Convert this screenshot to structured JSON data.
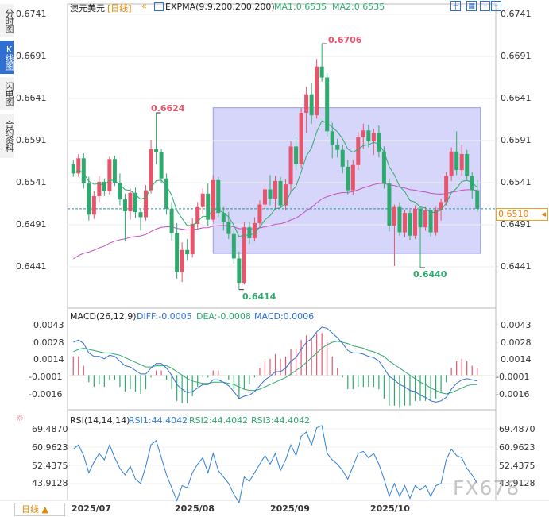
{
  "tabs": [
    {
      "label": "分时图",
      "active": false
    },
    {
      "label": "K线图",
      "active": true
    },
    {
      "label": "闪电图",
      "active": false
    },
    {
      "label": "合约资料",
      "active": false
    }
  ],
  "header": {
    "symbol": "澳元美元",
    "period_tag": "[日线]",
    "indicator": "EXPMA(9,9,200,200,200)",
    "ma1": "MA1:0.6535",
    "ma2": "MA2:0.6535"
  },
  "macd_header": {
    "name": "MACD(26,12,9)",
    "diff": "DIFF:-0.0005",
    "dea": "DEA:-0.0008",
    "macd": "MACD:0.0006"
  },
  "rsi_header": {
    "name": "RSI(14,14,14)",
    "rsi1": "RSI1:44.4042",
    "rsi2": "RSI2:44.4042",
    "rsi3": "RSI3:44.4042"
  },
  "period_selector": "日线 ▲",
  "watermark": "FX678",
  "current_price": "0.6510",
  "colors": {
    "up": "#e8546b",
    "down": "#2eaa6e",
    "ma1": "#2eaa6e",
    "ma2": "#c050c0",
    "diff": "#2f6fd1",
    "dea": "#2eaa6e",
    "rsi": "#2f7fd8",
    "highlight": "#c8c8f8"
  },
  "chart_data": [
    {
      "type": "candlestick",
      "title": "澳元美元 日线",
      "x_ticks": [
        "2025/07",
        "2025/08",
        "2025/09",
        "2025/10"
      ],
      "y_ticks": [
        "0.6741",
        "0.6691",
        "0.6641",
        "0.6591",
        "0.6541",
        "0.6491",
        "0.6441"
      ],
      "ylim": [
        0.6418,
        0.6757
      ],
      "annotations": [
        "0.6706",
        "0.6624",
        "0.6414",
        "0.6440"
      ],
      "ohlc": [
        [
          0.6563,
          0.6568,
          0.6548,
          0.6552
        ],
        [
          0.6552,
          0.6575,
          0.6548,
          0.657
        ],
        [
          0.657,
          0.6576,
          0.6534,
          0.654
        ],
        [
          0.654,
          0.6548,
          0.6496,
          0.6503
        ],
        [
          0.6503,
          0.6531,
          0.6498,
          0.6525
        ],
        [
          0.6525,
          0.6549,
          0.6518,
          0.6542
        ],
        [
          0.6542,
          0.6546,
          0.6525,
          0.6531
        ],
        [
          0.6531,
          0.6572,
          0.6527,
          0.6569
        ],
        [
          0.6569,
          0.6573,
          0.6537,
          0.6541
        ],
        [
          0.6541,
          0.6552,
          0.6514,
          0.6521
        ],
        [
          0.6521,
          0.6528,
          0.6471,
          0.6507
        ],
        [
          0.6507,
          0.6534,
          0.6497,
          0.6529
        ],
        [
          0.6529,
          0.6535,
          0.6499,
          0.6506
        ],
        [
          0.6506,
          0.651,
          0.6484,
          0.65
        ],
        [
          0.65,
          0.6538,
          0.6496,
          0.6532
        ],
        [
          0.6532,
          0.6592,
          0.6528,
          0.6581
        ],
        [
          0.6581,
          0.6624,
          0.6563,
          0.6577
        ],
        [
          0.6577,
          0.6581,
          0.654,
          0.6546
        ],
        [
          0.6546,
          0.6552,
          0.6503,
          0.651
        ],
        [
          0.651,
          0.6518,
          0.6472,
          0.6481
        ],
        [
          0.6481,
          0.6493,
          0.6427,
          0.6435
        ],
        [
          0.6435,
          0.647,
          0.6423,
          0.6461
        ],
        [
          0.6461,
          0.6474,
          0.6448,
          0.6456
        ],
        [
          0.6456,
          0.6499,
          0.6452,
          0.6492
        ],
        [
          0.6492,
          0.6518,
          0.6486,
          0.6512
        ],
        [
          0.6512,
          0.6534,
          0.6504,
          0.6528
        ],
        [
          0.6528,
          0.654,
          0.649,
          0.6497
        ],
        [
          0.6497,
          0.655,
          0.6494,
          0.6544
        ],
        [
          0.6544,
          0.6548,
          0.65,
          0.6505
        ],
        [
          0.6505,
          0.6512,
          0.6484,
          0.6494
        ],
        [
          0.6494,
          0.6506,
          0.6474,
          0.648
        ],
        [
          0.648,
          0.6484,
          0.6445,
          0.6451
        ],
        [
          0.6451,
          0.6459,
          0.6414,
          0.6422
        ],
        [
          0.6422,
          0.6494,
          0.642,
          0.6488
        ],
        [
          0.6488,
          0.6494,
          0.6468,
          0.6475
        ],
        [
          0.6475,
          0.65,
          0.6471,
          0.6493
        ],
        [
          0.6493,
          0.652,
          0.6488,
          0.6515
        ],
        [
          0.6515,
          0.6537,
          0.651,
          0.6533
        ],
        [
          0.6533,
          0.655,
          0.6514,
          0.6522
        ],
        [
          0.6522,
          0.6549,
          0.6508,
          0.6543
        ],
        [
          0.6543,
          0.6548,
          0.6511,
          0.6514
        ],
        [
          0.6514,
          0.6545,
          0.6508,
          0.6539
        ],
        [
          0.6539,
          0.659,
          0.653,
          0.6584
        ],
        [
          0.6584,
          0.6595,
          0.6556,
          0.6563
        ],
        [
          0.6563,
          0.663,
          0.6558,
          0.6624
        ],
        [
          0.6624,
          0.6655,
          0.66,
          0.6646
        ],
        [
          0.6646,
          0.666,
          0.6611,
          0.6621
        ],
        [
          0.6621,
          0.6688,
          0.6617,
          0.6679
        ],
        [
          0.6679,
          0.6706,
          0.6661,
          0.6666
        ],
        [
          0.6666,
          0.6671,
          0.6596,
          0.6602
        ],
        [
          0.6602,
          0.6612,
          0.657,
          0.6586
        ],
        [
          0.6586,
          0.6593,
          0.6571,
          0.658
        ],
        [
          0.658,
          0.6586,
          0.6552,
          0.656
        ],
        [
          0.656,
          0.6568,
          0.6527,
          0.6532
        ],
        [
          0.6532,
          0.6568,
          0.6526,
          0.6562
        ],
        [
          0.6562,
          0.6601,
          0.6556,
          0.6595
        ],
        [
          0.6595,
          0.6611,
          0.6581,
          0.6603
        ],
        [
          0.6603,
          0.661,
          0.6583,
          0.659
        ],
        [
          0.659,
          0.6605,
          0.6574,
          0.66
        ],
        [
          0.66,
          0.6609,
          0.6571,
          0.6578
        ],
        [
          0.6578,
          0.6584,
          0.6534,
          0.654
        ],
        [
          0.654,
          0.6546,
          0.6483,
          0.649
        ],
        [
          0.649,
          0.6515,
          0.6442,
          0.6512
        ],
        [
          0.6512,
          0.6518,
          0.6478,
          0.6482
        ],
        [
          0.6482,
          0.6509,
          0.6476,
          0.6505
        ],
        [
          0.6505,
          0.6508,
          0.6473,
          0.6478
        ],
        [
          0.6478,
          0.6514,
          0.6474,
          0.651
        ],
        [
          0.651,
          0.6513,
          0.644,
          0.6488
        ],
        [
          0.6488,
          0.6512,
          0.6484,
          0.6508
        ],
        [
          0.6508,
          0.6509,
          0.6477,
          0.6482
        ],
        [
          0.6482,
          0.6512,
          0.6478,
          0.6509
        ],
        [
          0.6509,
          0.6522,
          0.6496,
          0.6518
        ],
        [
          0.6518,
          0.6554,
          0.6514,
          0.6549
        ],
        [
          0.6549,
          0.6583,
          0.6543,
          0.6578
        ],
        [
          0.6578,
          0.6602,
          0.655,
          0.6556
        ],
        [
          0.6556,
          0.6586,
          0.6549,
          0.6575
        ],
        [
          0.6575,
          0.658,
          0.6544,
          0.6549
        ],
        [
          0.6549,
          0.6554,
          0.6522,
          0.6532
        ],
        [
          0.6532,
          0.6544,
          0.6506,
          0.651
        ]
      ],
      "series": [
        {
          "name": "MA1",
          "values": []
        },
        {
          "name": "MA2",
          "values": []
        }
      ]
    },
    {
      "type": "line",
      "title": "MACD(26,12,9)",
      "y_ticks": [
        "0.0043",
        "0.0028",
        "0.0014",
        "-0.0001",
        "-0.0016"
      ],
      "ylim": [
        -0.003,
        0.0052
      ],
      "series": [
        {
          "name": "DIFF",
          "values": [
            0.0028,
            0.003,
            0.0027,
            0.0019,
            0.0016,
            0.0016,
            0.0014,
            0.0017,
            0.0016,
            0.0012,
            0.0008,
            0.0007,
            0.0004,
            0.0001,
            0.0001,
            0.0006,
            0.001,
            0.001,
            0.0006,
            0.0,
            -0.0008,
            -0.0012,
            -0.0015,
            -0.0014,
            -0.0011,
            -0.0008,
            -0.0008,
            -0.0004,
            -0.0004,
            -0.0006,
            -0.0009,
            -0.0014,
            -0.002,
            -0.0018,
            -0.0017,
            -0.0014,
            -0.0009,
            -0.0004,
            -0.0001,
            0.0003,
            0.0003,
            0.0006,
            0.0012,
            0.0015,
            0.0022,
            0.0028,
            0.0031,
            0.0037,
            0.0041,
            0.004,
            0.0036,
            0.0032,
            0.0027,
            0.0021,
            0.0019,
            0.0019,
            0.0018,
            0.0016,
            0.0015,
            0.0012,
            0.0006,
            -0.0001,
            -0.0004,
            -0.0008,
            -0.001,
            -0.0013,
            -0.0014,
            -0.0017,
            -0.0019,
            -0.0022,
            -0.0023,
            -0.0022,
            -0.0019,
            -0.0012,
            -0.0007,
            -0.0004,
            -0.0003,
            -0.0004,
            -0.0005
          ]
        },
        {
          "name": "DEA",
          "values": [
            0.002,
            0.0022,
            0.0023,
            0.0022,
            0.0021,
            0.002,
            0.0019,
            0.0019,
            0.0018,
            0.0017,
            0.0015,
            0.0013,
            0.0011,
            0.0009,
            0.0007,
            0.0007,
            0.0008,
            0.0008,
            0.0008,
            0.0006,
            0.0003,
            0.0,
            -0.0003,
            -0.0005,
            -0.0006,
            -0.0007,
            -0.0007,
            -0.0006,
            -0.0006,
            -0.0006,
            -0.0007,
            -0.0008,
            -0.001,
            -0.0012,
            -0.0013,
            -0.0013,
            -0.0012,
            -0.001,
            -0.0008,
            -0.0006,
            -0.0004,
            -0.0002,
            0.0001,
            0.0004,
            0.0007,
            0.0011,
            0.0015,
            0.0019,
            0.0023,
            0.0026,
            0.0028,
            0.0029,
            0.0028,
            0.0027,
            0.0025,
            0.0024,
            0.0023,
            0.0021,
            0.002,
            0.0018,
            0.0016,
            0.0012,
            0.0009,
            0.0006,
            0.0003,
            0.0,
            -0.0003,
            -0.0006,
            -0.0008,
            -0.0011,
            -0.0013,
            -0.0015,
            -0.0016,
            -0.0015,
            -0.0013,
            -0.0011,
            -0.0009,
            -0.0008,
            -0.0008
          ]
        }
      ]
    },
    {
      "type": "line",
      "title": "RSI(14,14,14)",
      "y_ticks": [
        "69.4870",
        "60.9623",
        "52.4375",
        "43.9128"
      ],
      "ylim": [
        35,
        74
      ],
      "series": [
        {
          "name": "RSI1",
          "values": [
            60,
            62,
            57,
            49,
            54,
            58,
            55,
            62,
            56,
            51,
            48,
            52,
            46,
            44,
            52,
            62,
            64,
            56,
            48,
            42,
            36,
            43,
            42,
            49,
            53,
            56,
            49,
            58,
            50,
            47,
            44,
            39,
            35,
            47,
            45,
            49,
            53,
            57,
            53,
            58,
            50,
            55,
            62,
            57,
            66,
            68,
            62,
            70,
            71,
            58,
            55,
            53,
            50,
            46,
            52,
            58,
            59,
            56,
            58,
            53,
            46,
            38,
            44,
            38,
            43,
            37,
            43,
            41,
            43,
            38,
            43,
            44,
            55,
            60,
            57,
            56,
            51,
            48,
            44
          ]
        },
        {
          "name": "RSI2",
          "values": []
        },
        {
          "name": "RSI3",
          "values": []
        }
      ]
    }
  ]
}
